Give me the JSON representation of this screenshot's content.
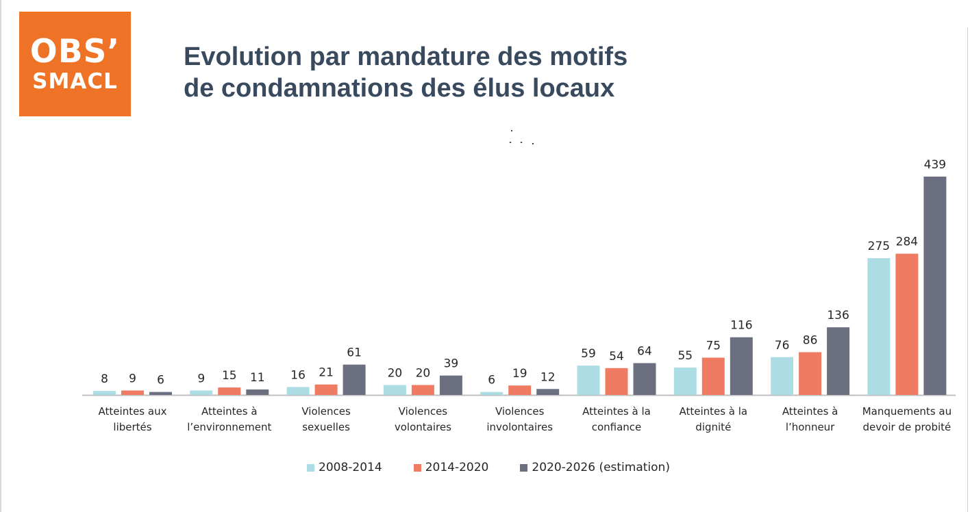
{
  "logo": {
    "line1": "OBS’",
    "line2": "SMACL"
  },
  "title": {
    "line1": "Evolution par mandature des motifs",
    "line2": "de condamnations des élus locaux"
  },
  "colors": {
    "logo_bg": "#ee7326",
    "title": "#3a4a5e",
    "series": [
      "#acdce4",
      "#ee7b62",
      "#6b6f80"
    ],
    "axis": "#bfbfbf"
  },
  "chart_data": {
    "type": "bar",
    "categories": [
      [
        "Atteintes aux",
        "libertés"
      ],
      [
        "Atteintes à",
        "l’environnement"
      ],
      [
        "Violences",
        "sexuelles"
      ],
      [
        "Violences",
        "volontaires"
      ],
      [
        "Violences",
        "involontaires"
      ],
      [
        "Atteintes à la",
        "confiance"
      ],
      [
        "Atteintes à la",
        "dignité"
      ],
      [
        "Atteintes à",
        "l’honneur"
      ],
      [
        "Manquements au",
        "devoir de probité"
      ]
    ],
    "series": [
      {
        "name": "2008-2014",
        "values": [
          8,
          9,
          16,
          20,
          6,
          59,
          55,
          76,
          275
        ]
      },
      {
        "name": "2014-2020",
        "values": [
          9,
          15,
          21,
          20,
          19,
          54,
          75,
          86,
          284
        ]
      },
      {
        "name": "2020-2026 (estimation)",
        "values": [
          6,
          11,
          61,
          39,
          12,
          64,
          116,
          136,
          439
        ]
      }
    ],
    "ylim": [
      0,
      439
    ],
    "grid": false,
    "data_labels": true,
    "legend": "bottom-center"
  }
}
